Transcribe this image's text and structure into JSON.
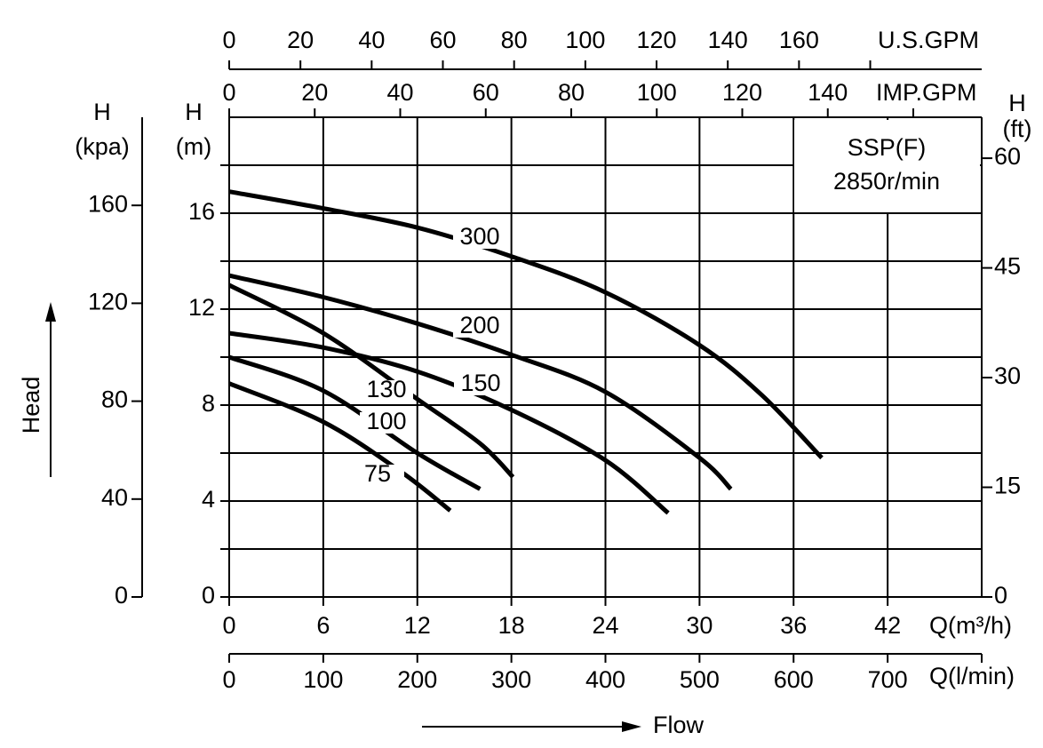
{
  "chart_data": {
    "type": "line",
    "color": "#000000",
    "grid": true,
    "annotation": [
      "SSP(F)",
      "2850r/min"
    ],
    "x_title": "Flow",
    "y_title": "Head",
    "x_label": "Q(m³/h)",
    "xlim": [
      0,
      48
    ],
    "xticks": [
      0,
      6,
      12,
      18,
      24,
      30,
      36,
      42
    ],
    "y_label": [
      "H",
      "(m)"
    ],
    "ylim": [
      0,
      20
    ],
    "yticks": [
      0,
      {
        "value": 2,
        "label": null
      },
      4,
      {
        "value": 6,
        "label": null
      },
      8,
      {
        "value": 10,
        "label": null
      },
      12,
      {
        "value": 14,
        "label": null
      },
      16,
      {
        "value": 18,
        "label": null
      }
    ],
    "y_kpa": {
      "label": [
        "H",
        "(kpa)"
      ],
      "lim": [
        0,
        196
      ],
      "ticks": [
        0,
        40,
        80,
        120,
        160
      ]
    },
    "y2_label": [
      "H",
      "(ft)"
    ],
    "y2lim": [
      0,
      65.6
    ],
    "y2ticks": [
      0,
      15,
      30,
      45,
      60
    ],
    "x_us_gpm": {
      "label": "U.S.GPM",
      "lim": [
        0,
        211.3
      ],
      "ticks": [
        0,
        20,
        40,
        60,
        80,
        100,
        120,
        140,
        160,
        {
          "value": 180,
          "label": null
        }
      ]
    },
    "x_imp_gpm": {
      "label": "IMP.GPM",
      "lim": [
        0,
        176
      ],
      "ticks": [
        0,
        20,
        40,
        60,
        80,
        100,
        120,
        140,
        {
          "value": 160,
          "label": null
        }
      ]
    },
    "x_lpm": {
      "label": "Q(l/min)",
      "lim": [
        0,
        800
      ],
      "ticks": [
        0,
        100,
        200,
        300,
        400,
        500,
        600,
        700,
        {
          "value": 800,
          "label": null
        }
      ]
    },
    "series": [
      {
        "name": "300",
        "x": [
          0,
          6,
          12,
          18,
          24,
          30,
          34,
          37.8
        ],
        "values": [
          16.9,
          16.2,
          15.4,
          14.2,
          12.7,
          10.5,
          8.4,
          5.8
        ]
      },
      {
        "name": "200",
        "x": [
          0,
          6,
          12,
          18,
          24,
          30,
          32
        ],
        "values": [
          13.4,
          12.5,
          11.4,
          10.1,
          8.55,
          5.8,
          4.5
        ]
      },
      {
        "name": "150",
        "x": [
          0,
          6,
          12,
          18,
          24,
          28
        ],
        "values": [
          11.0,
          10.4,
          9.4,
          7.8,
          5.7,
          3.5
        ]
      },
      {
        "name": "130",
        "x": [
          0,
          6,
          12,
          16,
          18.1
        ],
        "values": [
          13.0,
          11.0,
          8.25,
          6.4,
          5.0
        ]
      },
      {
        "name": "100",
        "x": [
          0,
          6,
          12,
          16
        ],
        "values": [
          10.0,
          8.6,
          6.0,
          4.5
        ]
      },
      {
        "name": "75",
        "x": [
          0,
          6,
          11,
          14.1
        ],
        "values": [
          8.9,
          7.3,
          5.2,
          3.6
        ]
      }
    ]
  }
}
